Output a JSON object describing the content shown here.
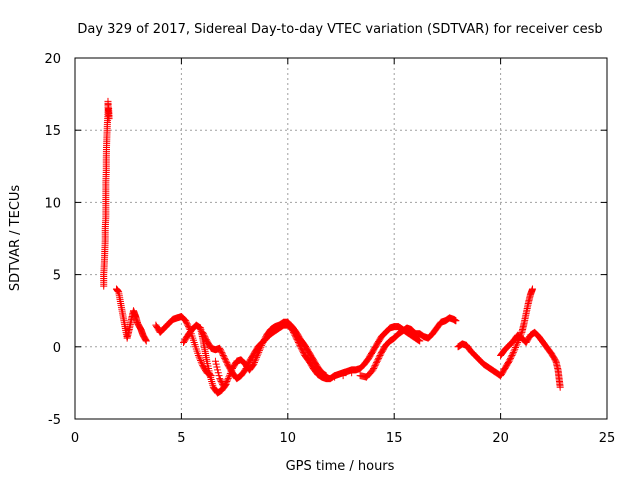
{
  "chart_data": {
    "type": "scatter",
    "title": "Day 329 of 2017, Sidereal Day-to-day VTEC variation (SDTVAR) for receiver cesb",
    "xlabel": "GPS time / hours",
    "ylabel": "SDTVAR / TECUs",
    "xlim": [
      0,
      25
    ],
    "ylim": [
      -5,
      20
    ],
    "xticks": [
      0,
      5,
      10,
      15,
      20,
      25
    ],
    "yticks": [
      -5,
      0,
      5,
      10,
      15,
      20
    ],
    "grid": true,
    "marker": "+",
    "color": "#ff0000",
    "series": [
      {
        "name": "SDTVAR",
        "points": [
          [
            1.35,
            4.2
          ],
          [
            1.35,
            5.0
          ],
          [
            1.38,
            5.8
          ],
          [
            1.4,
            6.6
          ],
          [
            1.42,
            7.4
          ],
          [
            1.42,
            8.2
          ],
          [
            1.45,
            9.0
          ],
          [
            1.45,
            9.8
          ],
          [
            1.45,
            10.6
          ],
          [
            1.45,
            11.4
          ],
          [
            1.47,
            12.2
          ],
          [
            1.47,
            13.0
          ],
          [
            1.48,
            13.8
          ],
          [
            1.5,
            14.6
          ],
          [
            1.52,
            15.4
          ],
          [
            1.55,
            16.2
          ],
          [
            1.55,
            17.0
          ],
          [
            1.6,
            15.8
          ],
          [
            1.58,
            16.5
          ],
          [
            1.95,
            4.0
          ],
          [
            2.05,
            3.8
          ],
          [
            2.15,
            3.0
          ],
          [
            2.25,
            2.2
          ],
          [
            2.35,
            1.4
          ],
          [
            2.45,
            0.6
          ],
          [
            2.55,
            1.2
          ],
          [
            2.65,
            1.9
          ],
          [
            2.75,
            2.5
          ],
          [
            2.85,
            2.1
          ],
          [
            2.95,
            1.6
          ],
          [
            3.1,
            1.2
          ],
          [
            3.2,
            0.8
          ],
          [
            3.35,
            0.4
          ],
          [
            3.8,
            1.5
          ],
          [
            4.0,
            1.0
          ],
          [
            4.2,
            1.3
          ],
          [
            4.4,
            1.6
          ],
          [
            4.6,
            1.9
          ],
          [
            4.8,
            2.0
          ],
          [
            5.0,
            2.1
          ],
          [
            5.2,
            1.8
          ],
          [
            5.4,
            1.2
          ],
          [
            5.6,
            0.3
          ],
          [
            5.8,
            -0.6
          ],
          [
            6.0,
            -1.3
          ],
          [
            6.2,
            -1.8
          ],
          [
            6.4,
            -2.0
          ],
          [
            5.1,
            0.3
          ],
          [
            5.3,
            0.8
          ],
          [
            5.5,
            1.2
          ],
          [
            5.7,
            1.5
          ],
          [
            5.9,
            1.3
          ],
          [
            6.0,
            0.6
          ],
          [
            6.1,
            -0.2
          ],
          [
            6.2,
            -1.0
          ],
          [
            6.35,
            -2.0
          ],
          [
            6.5,
            -2.8
          ],
          [
            6.7,
            -3.2
          ],
          [
            6.9,
            -3.0
          ],
          [
            7.1,
            -2.6
          ],
          [
            6.0,
            1.0
          ],
          [
            6.2,
            0.4
          ],
          [
            6.4,
            -0.1
          ],
          [
            6.6,
            -0.2
          ],
          [
            6.8,
            -0.1
          ],
          [
            7.0,
            -0.7
          ],
          [
            7.2,
            -1.3
          ],
          [
            7.4,
            -1.8
          ],
          [
            7.6,
            -2.2
          ],
          [
            7.8,
            -2.0
          ],
          [
            8.0,
            -1.6
          ],
          [
            8.2,
            -1.0
          ],
          [
            8.4,
            -0.5
          ],
          [
            8.6,
            0.0
          ],
          [
            8.8,
            0.3
          ],
          [
            9.0,
            0.6
          ],
          [
            9.2,
            0.9
          ],
          [
            9.4,
            1.1
          ],
          [
            9.6,
            1.3
          ],
          [
            9.8,
            1.5
          ],
          [
            10.0,
            1.5
          ],
          [
            10.2,
            1.2
          ],
          [
            10.4,
            0.6
          ],
          [
            10.6,
            0.0
          ],
          [
            10.8,
            -0.6
          ],
          [
            11.0,
            -1.0
          ],
          [
            11.2,
            -1.5
          ],
          [
            11.4,
            -1.9
          ],
          [
            11.6,
            -2.1
          ],
          [
            11.8,
            -2.2
          ],
          [
            12.0,
            -2.2
          ],
          [
            12.2,
            -2.0
          ],
          [
            12.4,
            -1.9
          ],
          [
            12.6,
            -1.8
          ],
          [
            12.8,
            -1.7
          ],
          [
            13.0,
            -1.6
          ],
          [
            13.2,
            -1.6
          ],
          [
            13.4,
            -1.5
          ],
          [
            13.6,
            -1.2
          ],
          [
            13.8,
            -0.8
          ],
          [
            14.0,
            -0.3
          ],
          [
            14.2,
            0.2
          ],
          [
            14.4,
            0.7
          ],
          [
            14.6,
            1.0
          ],
          [
            14.8,
            1.3
          ],
          [
            15.0,
            1.4
          ],
          [
            15.2,
            1.4
          ],
          [
            15.4,
            1.2
          ],
          [
            15.6,
            1.0
          ],
          [
            15.8,
            0.8
          ],
          [
            16.0,
            0.6
          ],
          [
            16.2,
            0.4
          ],
          [
            6.6,
            -1.0
          ],
          [
            6.8,
            -2.2
          ],
          [
            7.0,
            -2.8
          ],
          [
            7.2,
            -2.2
          ],
          [
            7.4,
            -1.5
          ],
          [
            7.6,
            -1.0
          ],
          [
            7.8,
            -0.9
          ],
          [
            8.0,
            -1.2
          ],
          [
            8.2,
            -1.6
          ],
          [
            8.4,
            -1.2
          ],
          [
            8.6,
            -0.5
          ],
          [
            8.8,
            0.2
          ],
          [
            9.0,
            0.8
          ],
          [
            9.2,
            1.2
          ],
          [
            9.4,
            1.4
          ],
          [
            9.6,
            1.5
          ],
          [
            9.8,
            1.7
          ],
          [
            10.0,
            1.7
          ],
          [
            10.2,
            1.4
          ],
          [
            10.4,
            1.0
          ],
          [
            10.6,
            0.5
          ],
          [
            10.8,
            0.1
          ],
          [
            11.0,
            -0.4
          ],
          [
            11.2,
            -0.9
          ],
          [
            11.4,
            -1.4
          ],
          [
            11.6,
            -1.8
          ],
          [
            11.8,
            -2.0
          ],
          [
            12.2,
            -2.1
          ],
          [
            12.6,
            -2.0
          ],
          [
            13.0,
            -1.8
          ],
          [
            13.4,
            -2.0
          ],
          [
            13.7,
            -2.1
          ],
          [
            14.0,
            -1.6
          ],
          [
            14.2,
            -1.0
          ],
          [
            14.4,
            -0.4
          ],
          [
            14.6,
            0.1
          ],
          [
            14.8,
            0.4
          ],
          [
            15.0,
            0.6
          ],
          [
            15.2,
            0.9
          ],
          [
            15.4,
            1.1
          ],
          [
            15.6,
            1.3
          ],
          [
            15.8,
            1.2
          ],
          [
            16.0,
            0.9
          ],
          [
            16.2,
            0.9
          ],
          [
            16.4,
            0.7
          ],
          [
            16.6,
            0.6
          ],
          [
            16.8,
            0.9
          ],
          [
            17.0,
            1.3
          ],
          [
            17.2,
            1.7
          ],
          [
            17.4,
            1.8
          ],
          [
            17.6,
            2.0
          ],
          [
            17.8,
            1.9
          ],
          [
            17.9,
            1.8
          ],
          [
            18.0,
            0.0
          ],
          [
            18.2,
            0.2
          ],
          [
            18.4,
            0.1
          ],
          [
            18.6,
            -0.3
          ],
          [
            18.8,
            -0.6
          ],
          [
            19.0,
            -0.9
          ],
          [
            19.2,
            -1.2
          ],
          [
            19.4,
            -1.4
          ],
          [
            19.6,
            -1.6
          ],
          [
            19.8,
            -1.8
          ],
          [
            20.0,
            -2.0
          ],
          [
            20.2,
            -1.5
          ],
          [
            20.4,
            -1.0
          ],
          [
            20.6,
            -0.4
          ],
          [
            20.8,
            0.3
          ],
          [
            21.0,
            1.0
          ],
          [
            21.1,
            1.6
          ],
          [
            21.2,
            2.3
          ],
          [
            21.3,
            3.0
          ],
          [
            21.4,
            3.6
          ],
          [
            21.5,
            4.0
          ],
          [
            20.0,
            -0.6
          ],
          [
            20.2,
            -0.2
          ],
          [
            20.4,
            0.1
          ],
          [
            20.6,
            0.4
          ],
          [
            20.8,
            0.8
          ],
          [
            21.0,
            0.6
          ],
          [
            21.2,
            0.3
          ],
          [
            21.4,
            0.8
          ],
          [
            21.6,
            1.0
          ],
          [
            21.8,
            0.7
          ],
          [
            22.0,
            0.3
          ],
          [
            22.2,
            -0.1
          ],
          [
            22.4,
            -0.5
          ],
          [
            22.6,
            -1.0
          ],
          [
            22.7,
            -1.6
          ],
          [
            22.75,
            -2.2
          ],
          [
            22.8,
            -2.8
          ]
        ]
      }
    ]
  }
}
